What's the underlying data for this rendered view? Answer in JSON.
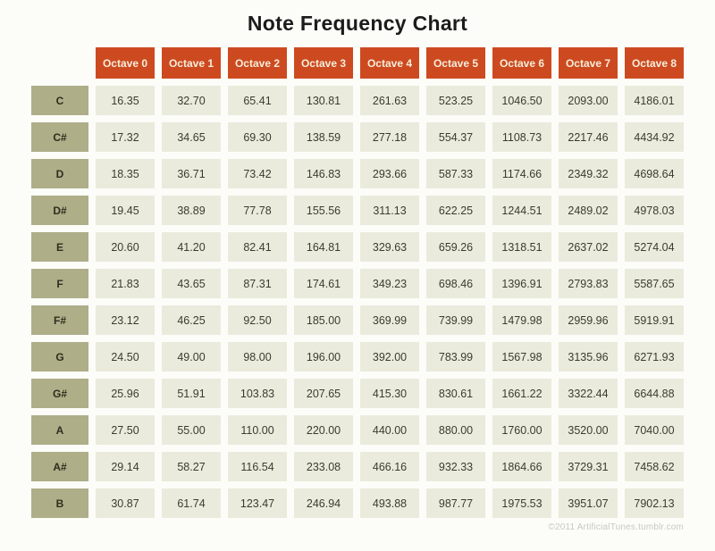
{
  "title": "Note Frequency Chart",
  "watermark": "©2011 ArtificialTunes.tumblr.com",
  "colors": {
    "header_bg": "#cd4a20",
    "header_text": "#f6eedb",
    "note_bg": "#aeae88",
    "note_text": "#2e2e1f",
    "cell_bg": "#ebebdd",
    "cell_text": "#3a3a30",
    "page_bg": "#fcfcf9",
    "title_text": "#1c1c1c",
    "watermark_text": "#c7c7c3"
  },
  "chart_data": {
    "type": "table",
    "title": "Note Frequency Chart",
    "column_headers": [
      "Octave 0",
      "Octave 1",
      "Octave 2",
      "Octave 3",
      "Octave 4",
      "Octave 5",
      "Octave 6",
      "Octave 7",
      "Octave 8"
    ],
    "row_headers": [
      "C",
      "C#",
      "D",
      "D#",
      "E",
      "F",
      "F#",
      "G",
      "G#",
      "A",
      "A#",
      "B"
    ],
    "rows": [
      {
        "note": "C",
        "values": [
          "16.35",
          "32.70",
          "65.41",
          "130.81",
          "261.63",
          "523.25",
          "1046.50",
          "2093.00",
          "4186.01"
        ]
      },
      {
        "note": "C#",
        "values": [
          "17.32",
          "34.65",
          "69.30",
          "138.59",
          "277.18",
          "554.37",
          "1108.73",
          "2217.46",
          "4434.92"
        ]
      },
      {
        "note": "D",
        "values": [
          "18.35",
          "36.71",
          "73.42",
          "146.83",
          "293.66",
          "587.33",
          "1174.66",
          "2349.32",
          "4698.64"
        ]
      },
      {
        "note": "D#",
        "values": [
          "19.45",
          "38.89",
          "77.78",
          "155.56",
          "311.13",
          "622.25",
          "1244.51",
          "2489.02",
          "4978.03"
        ]
      },
      {
        "note": "E",
        "values": [
          "20.60",
          "41.20",
          "82.41",
          "164.81",
          "329.63",
          "659.26",
          "1318.51",
          "2637.02",
          "5274.04"
        ]
      },
      {
        "note": "F",
        "values": [
          "21.83",
          "43.65",
          "87.31",
          "174.61",
          "349.23",
          "698.46",
          "1396.91",
          "2793.83",
          "5587.65"
        ]
      },
      {
        "note": "F#",
        "values": [
          "23.12",
          "46.25",
          "92.50",
          "185.00",
          "369.99",
          "739.99",
          "1479.98",
          "2959.96",
          "5919.91"
        ]
      },
      {
        "note": "G",
        "values": [
          "24.50",
          "49.00",
          "98.00",
          "196.00",
          "392.00",
          "783.99",
          "1567.98",
          "3135.96",
          "6271.93"
        ]
      },
      {
        "note": "G#",
        "values": [
          "25.96",
          "51.91",
          "103.83",
          "207.65",
          "415.30",
          "830.61",
          "1661.22",
          "3322.44",
          "6644.88"
        ]
      },
      {
        "note": "A",
        "values": [
          "27.50",
          "55.00",
          "110.00",
          "220.00",
          "440.00",
          "880.00",
          "1760.00",
          "3520.00",
          "7040.00"
        ]
      },
      {
        "note": "A#",
        "values": [
          "29.14",
          "58.27",
          "116.54",
          "233.08",
          "466.16",
          "932.33",
          "1864.66",
          "3729.31",
          "7458.62"
        ]
      },
      {
        "note": "B",
        "values": [
          "30.87",
          "61.74",
          "123.47",
          "246.94",
          "493.88",
          "987.77",
          "1975.53",
          "3951.07",
          "7902.13"
        ]
      }
    ]
  }
}
